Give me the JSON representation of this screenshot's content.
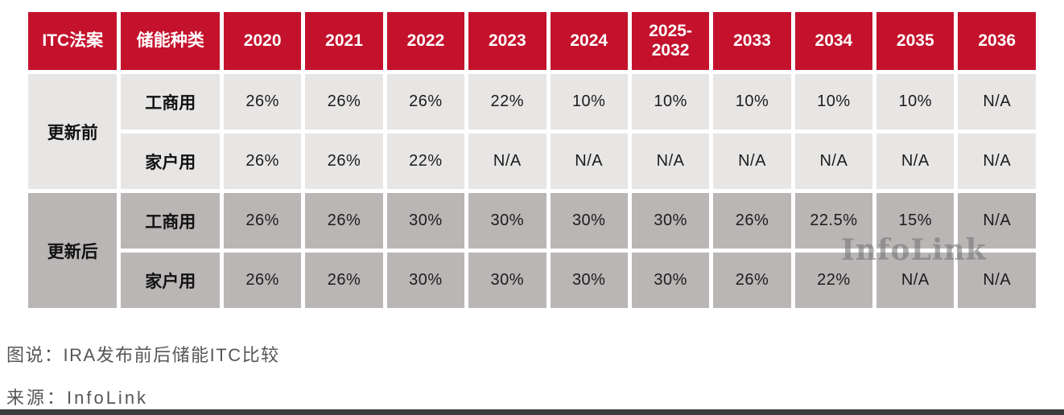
{
  "chart_data": {
    "type": "table",
    "title": "IRA发布前后储能ITC比较",
    "columns": [
      "ITC法案",
      "储能种类",
      "2020",
      "2021",
      "2022",
      "2023",
      "2024",
      "2025-2032",
      "2033",
      "2034",
      "2035",
      "2036"
    ],
    "groups": [
      {
        "label": "更新前",
        "rows": [
          {
            "type": "工商用",
            "values": [
              "26%",
              "26%",
              "26%",
              "22%",
              "10%",
              "10%",
              "10%",
              "10%",
              "10%",
              "N/A"
            ]
          },
          {
            "type": "家户用",
            "values": [
              "26%",
              "26%",
              "22%",
              "N/A",
              "N/A",
              "N/A",
              "N/A",
              "N/A",
              "N/A",
              "N/A"
            ]
          }
        ]
      },
      {
        "label": "更新后",
        "rows": [
          {
            "type": "工商用",
            "values": [
              "26%",
              "26%",
              "30%",
              "30%",
              "30%",
              "30%",
              "26%",
              "22.5%",
              "15%",
              "N/A"
            ]
          },
          {
            "type": "家户用",
            "values": [
              "26%",
              "26%",
              "30%",
              "30%",
              "30%",
              "30%",
              "26%",
              "22%",
              "N/A",
              "N/A"
            ]
          }
        ]
      }
    ],
    "layout": {
      "header_bg": "#c4122d",
      "group1_bg": "#e8e6e5",
      "group2_bg": "#b9b6b5",
      "grid": "white-gaps"
    }
  },
  "caption": "图说：IRA发布前后储能ITC比较",
  "source": "来源：InfoLink",
  "watermark": "InfoLink"
}
